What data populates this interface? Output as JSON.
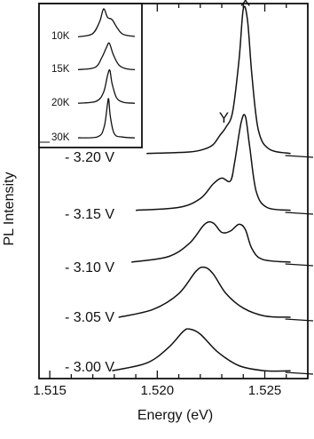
{
  "chart_data": [
    {
      "type": "line",
      "title": "",
      "xlabel": "Energy (eV)",
      "ylabel": "PL Intensity",
      "xlim": [
        1.5145,
        1.527
      ],
      "x_ticks": [
        "1.515",
        "1.520",
        "1.525"
      ],
      "y_ticks": "none",
      "grid": false,
      "legend": "none",
      "peak_labels": [
        {
          "text": "Y",
          "x": 1.5231
        },
        {
          "text": "X",
          "x": 1.5241
        }
      ],
      "series": [
        {
          "name": "- 3.20 V",
          "points": [
            [
              1.5195,
              0.02
            ],
            [
              1.5215,
              0.03
            ],
            [
              1.5222,
              0.05
            ],
            [
              1.5226,
              0.08
            ],
            [
              1.5229,
              0.14
            ],
            [
              1.5232,
              0.2
            ],
            [
              1.5235,
              0.3
            ],
            [
              1.5238,
              0.65
            ],
            [
              1.524,
              1.0
            ],
            [
              1.5242,
              0.92
            ],
            [
              1.5244,
              0.55
            ],
            [
              1.5247,
              0.18
            ],
            [
              1.5252,
              0.05
            ],
            [
              1.5262,
              0.02
            ]
          ]
        },
        {
          "name": "- 3.15 V",
          "points": [
            [
              1.519,
              0.02
            ],
            [
              1.521,
              0.04
            ],
            [
              1.522,
              0.1
            ],
            [
              1.5226,
              0.2
            ],
            [
              1.523,
              0.24
            ],
            [
              1.5234,
              0.22
            ],
            [
              1.5236,
              0.35
            ],
            [
              1.5239,
              0.62
            ],
            [
              1.5241,
              0.66
            ],
            [
              1.5243,
              0.45
            ],
            [
              1.5246,
              0.15
            ],
            [
              1.5251,
              0.04
            ],
            [
              1.5262,
              0.02
            ]
          ]
        },
        {
          "name": "- 3.10 V",
          "points": [
            [
              1.5188,
              0.02
            ],
            [
              1.5205,
              0.06
            ],
            [
              1.5215,
              0.16
            ],
            [
              1.5222,
              0.3
            ],
            [
              1.5226,
              0.31
            ],
            [
              1.523,
              0.24
            ],
            [
              1.5234,
              0.25
            ],
            [
              1.5238,
              0.3
            ],
            [
              1.5241,
              0.26
            ],
            [
              1.5244,
              0.12
            ],
            [
              1.5249,
              0.04
            ],
            [
              1.5262,
              0.02
            ]
          ]
        },
        {
          "name": "- 3.05 V",
          "points": [
            [
              1.5182,
              0.02
            ],
            [
              1.5198,
              0.08
            ],
            [
              1.521,
              0.2
            ],
            [
              1.5218,
              0.37
            ],
            [
              1.5222,
              0.4
            ],
            [
              1.5226,
              0.35
            ],
            [
              1.5232,
              0.2
            ],
            [
              1.524,
              0.09
            ],
            [
              1.525,
              0.03
            ],
            [
              1.5262,
              0.02
            ]
          ]
        },
        {
          "name": "- 3.00 V",
          "points": [
            [
              1.5179,
              0.02
            ],
            [
              1.5195,
              0.08
            ],
            [
              1.5205,
              0.2
            ],
            [
              1.5212,
              0.33
            ],
            [
              1.5215,
              0.35
            ],
            [
              1.522,
              0.31
            ],
            [
              1.5228,
              0.17
            ],
            [
              1.5238,
              0.06
            ],
            [
              1.525,
              0.02
            ],
            [
              1.5262,
              0.02
            ]
          ]
        }
      ]
    },
    {
      "type": "line",
      "title": "",
      "xlabel": "",
      "ylabel": "",
      "grid": false,
      "legend": "none",
      "series": [
        {
          "name": "10K",
          "points": [
            [
              0,
              0.02
            ],
            [
              0.25,
              0.12
            ],
            [
              0.38,
              0.55
            ],
            [
              0.45,
              1.0
            ],
            [
              0.52,
              0.7
            ],
            [
              0.6,
              0.62
            ],
            [
              0.7,
              0.3
            ],
            [
              0.8,
              0.1
            ],
            [
              1,
              0.03
            ]
          ]
        },
        {
          "name": "15K",
          "points": [
            [
              0,
              0.02
            ],
            [
              0.3,
              0.1
            ],
            [
              0.42,
              0.45
            ],
            [
              0.5,
              0.8
            ],
            [
              0.55,
              0.95
            ],
            [
              0.62,
              0.55
            ],
            [
              0.72,
              0.18
            ],
            [
              0.85,
              0.05
            ],
            [
              1,
              0.02
            ]
          ]
        },
        {
          "name": "20K",
          "points": [
            [
              0,
              0.02
            ],
            [
              0.32,
              0.08
            ],
            [
              0.45,
              0.35
            ],
            [
              0.52,
              0.85
            ],
            [
              0.56,
              1.0
            ],
            [
              0.6,
              0.6
            ],
            [
              0.68,
              0.18
            ],
            [
              0.8,
              0.05
            ],
            [
              1,
              0.02
            ]
          ]
        },
        {
          "name": "30K",
          "points": [
            [
              0,
              0.02
            ],
            [
              0.35,
              0.05
            ],
            [
              0.46,
              0.3
            ],
            [
              0.52,
              0.9
            ],
            [
              0.54,
              1.0
            ],
            [
              0.57,
              0.55
            ],
            [
              0.64,
              0.12
            ],
            [
              0.78,
              0.04
            ],
            [
              1,
              0.02
            ]
          ]
        }
      ]
    }
  ]
}
